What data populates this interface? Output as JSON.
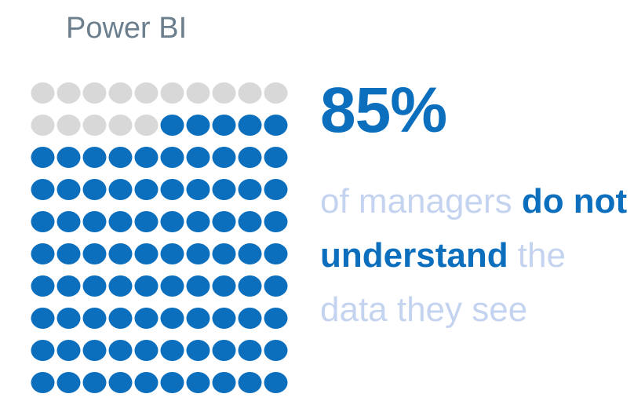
{
  "brand": {
    "title": "Power BI"
  },
  "chart_data": {
    "type": "waffle",
    "rows": 10,
    "columns": 10,
    "total": 100,
    "filled": 85,
    "value": 85,
    "value_label": "85%",
    "fill_order": "bottom-up",
    "colors": {
      "filled": "#0b6fbe",
      "empty": "#d8d8d8"
    }
  },
  "caption": {
    "part1": "of managers ",
    "emphasis": "do not understand",
    "part2": " the data they see",
    "colors": {
      "normal": "#c4d3ef",
      "emphasis": "#0b6fbe"
    }
  }
}
